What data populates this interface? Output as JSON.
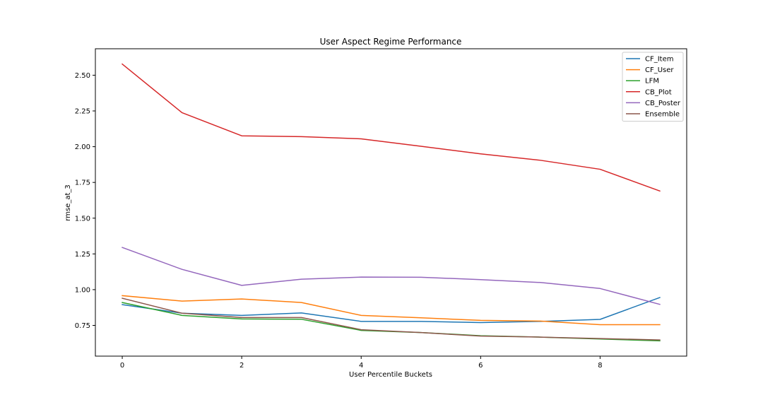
{
  "chart_data": {
    "type": "line",
    "title": "User Aspect Regime Performance",
    "xlabel": "User Percentile Buckets",
    "ylabel": "rmse_at_3",
    "xlim": [
      -0.45,
      9.45
    ],
    "ylim": [
      0.535,
      2.685
    ],
    "xticks": [
      0,
      2,
      4,
      6,
      8
    ],
    "xtick_labels": [
      "0",
      "2",
      "4",
      "6",
      "8"
    ],
    "yticks": [
      0.75,
      1.0,
      1.25,
      1.5,
      1.75,
      2.0,
      2.25,
      2.5
    ],
    "ytick_labels": [
      "0.75",
      "1.00",
      "1.25",
      "1.50",
      "1.75",
      "2.00",
      "2.25",
      "2.50"
    ],
    "grid": false,
    "legend_position": "top-right",
    "x": [
      0,
      1,
      2,
      3,
      4,
      5,
      6,
      7,
      8,
      9
    ],
    "series": [
      {
        "name": "CF_Item",
        "color": "#1f77b4",
        "values": [
          0.895,
          0.835,
          0.82,
          0.837,
          0.778,
          0.778,
          0.77,
          0.778,
          0.792,
          0.945
        ]
      },
      {
        "name": "CF_User",
        "color": "#ff7f0e",
        "values": [
          0.958,
          0.92,
          0.935,
          0.91,
          0.82,
          0.803,
          0.785,
          0.78,
          0.755,
          0.755
        ]
      },
      {
        "name": "LFM",
        "color": "#2ca02c",
        "values": [
          0.91,
          0.82,
          0.795,
          0.793,
          0.715,
          0.7,
          0.678,
          0.668,
          0.655,
          0.642
        ]
      },
      {
        "name": "CB_Plot",
        "color": "#d62728",
        "values": [
          2.578,
          2.238,
          2.076,
          2.07,
          2.055,
          2.003,
          1.95,
          1.905,
          1.842,
          1.69
        ]
      },
      {
        "name": "CB_Poster",
        "color": "#9467bd",
        "values": [
          1.295,
          1.142,
          1.03,
          1.073,
          1.088,
          1.087,
          1.07,
          1.05,
          1.008,
          0.897
        ]
      },
      {
        "name": "Ensemble",
        "color": "#8c564b",
        "values": [
          0.94,
          0.835,
          0.805,
          0.805,
          0.72,
          0.7,
          0.675,
          0.668,
          0.658,
          0.648
        ]
      }
    ]
  }
}
